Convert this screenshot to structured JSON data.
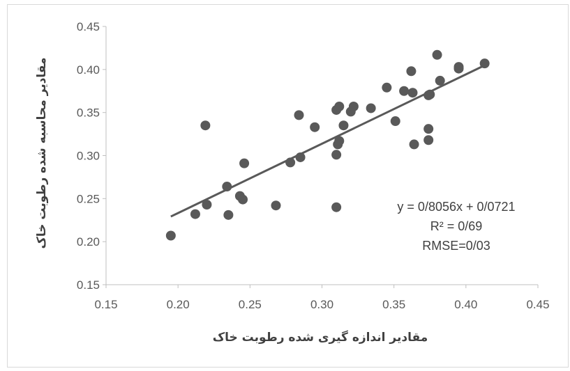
{
  "chart_data": {
    "type": "scatter",
    "xlabel": "مقادیر اندازه گیری شده رطوبت خاک",
    "ylabel": "مقادیر محاسبه شده رطوبت خاک",
    "xlim": [
      0.15,
      0.45
    ],
    "ylim": [
      0.15,
      0.45
    ],
    "x_ticks": [
      "0.15",
      "0.20",
      "0.25",
      "0.30",
      "0.35",
      "0.40",
      "0.45"
    ],
    "y_ticks": [
      "0.15",
      "0.20",
      "0.25",
      "0.30",
      "0.35",
      "0.40",
      "0.45"
    ],
    "grid": false,
    "point_color": "#595959",
    "trendline": {
      "slope": 0.8056,
      "intercept": 0.0721,
      "x_range": [
        0.195,
        0.413
      ],
      "color": "#595959"
    },
    "annotations": [
      "y = 0/8056x + 0/0721",
      "R² = 0/69",
      "RMSE=0/03"
    ],
    "points": [
      {
        "x": 0.195,
        "y": 0.207
      },
      {
        "x": 0.212,
        "y": 0.232
      },
      {
        "x": 0.219,
        "y": 0.335
      },
      {
        "x": 0.22,
        "y": 0.243
      },
      {
        "x": 0.234,
        "y": 0.264
      },
      {
        "x": 0.235,
        "y": 0.231
      },
      {
        "x": 0.243,
        "y": 0.253
      },
      {
        "x": 0.245,
        "y": 0.249
      },
      {
        "x": 0.246,
        "y": 0.291
      },
      {
        "x": 0.268,
        "y": 0.242
      },
      {
        "x": 0.278,
        "y": 0.292
      },
      {
        "x": 0.284,
        "y": 0.347
      },
      {
        "x": 0.285,
        "y": 0.298
      },
      {
        "x": 0.295,
        "y": 0.333
      },
      {
        "x": 0.31,
        "y": 0.353
      },
      {
        "x": 0.31,
        "y": 0.301
      },
      {
        "x": 0.31,
        "y": 0.24
      },
      {
        "x": 0.311,
        "y": 0.313
      },
      {
        "x": 0.312,
        "y": 0.357
      },
      {
        "x": 0.312,
        "y": 0.317
      },
      {
        "x": 0.315,
        "y": 0.335
      },
      {
        "x": 0.32,
        "y": 0.351
      },
      {
        "x": 0.322,
        "y": 0.357
      },
      {
        "x": 0.334,
        "y": 0.355
      },
      {
        "x": 0.345,
        "y": 0.379
      },
      {
        "x": 0.351,
        "y": 0.34
      },
      {
        "x": 0.357,
        "y": 0.375
      },
      {
        "x": 0.362,
        "y": 0.398
      },
      {
        "x": 0.363,
        "y": 0.373
      },
      {
        "x": 0.364,
        "y": 0.313
      },
      {
        "x": 0.374,
        "y": 0.37
      },
      {
        "x": 0.374,
        "y": 0.331
      },
      {
        "x": 0.374,
        "y": 0.318
      },
      {
        "x": 0.375,
        "y": 0.371
      },
      {
        "x": 0.38,
        "y": 0.417
      },
      {
        "x": 0.382,
        "y": 0.387
      },
      {
        "x": 0.395,
        "y": 0.401
      },
      {
        "x": 0.395,
        "y": 0.403
      },
      {
        "x": 0.413,
        "y": 0.407
      }
    ]
  }
}
